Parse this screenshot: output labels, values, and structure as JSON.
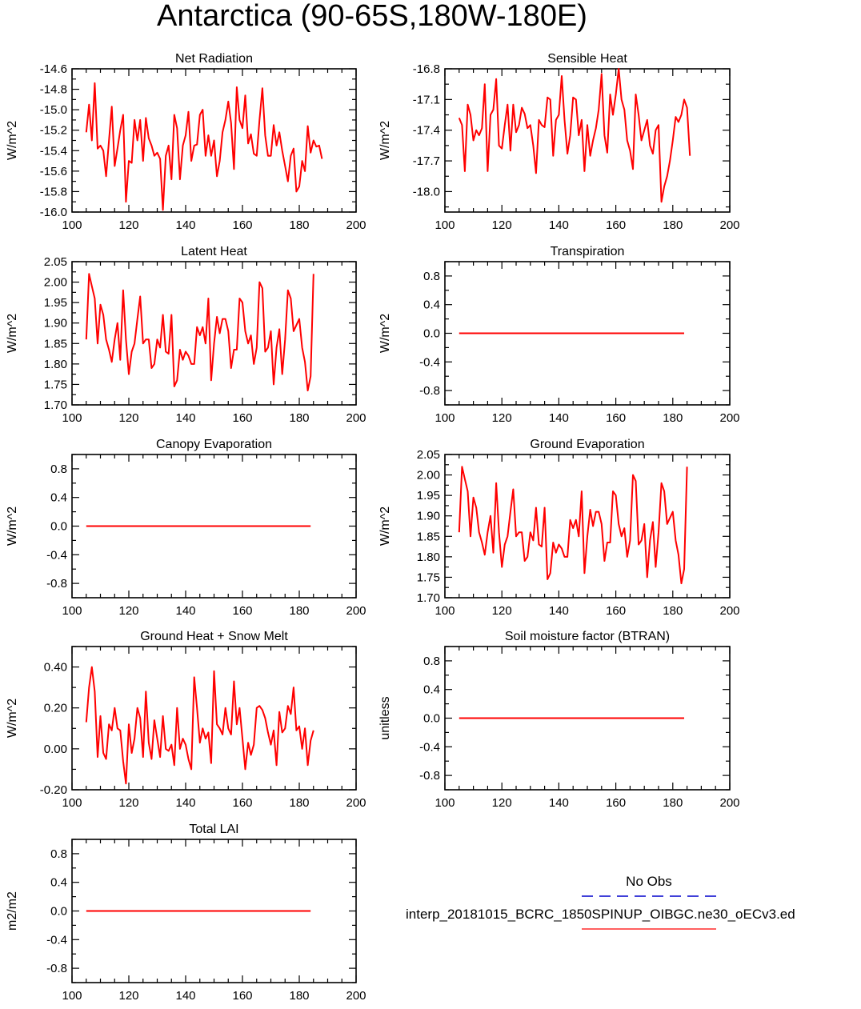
{
  "page": {
    "title": "Antarctica (90-65S,180W-180E)"
  },
  "legend": {
    "entries": [
      {
        "label": "No Obs",
        "color": "#0000cc",
        "dash": true
      },
      {
        "label": "interp_20181015_BCRC_1850SPINUP_OIBGC.ne30_oECv3.ed",
        "color": "#ff0000",
        "dash": false
      }
    ]
  },
  "chart_data": [
    {
      "id": "net-radiation",
      "type": "line",
      "title": "Net Radiation",
      "ylabel": "W/m^2",
      "xlim": [
        100,
        200
      ],
      "ylim": [
        -16.0,
        -14.6
      ],
      "xticks": [
        100,
        120,
        140,
        160,
        180,
        200
      ],
      "xtick_labels": [
        "100",
        "120",
        "140",
        "160",
        "180",
        "200"
      ],
      "yticks": [
        -16.0,
        -15.8,
        -15.6,
        -15.4,
        -15.2,
        -15.0,
        -14.8,
        -14.6
      ],
      "ytick_labels": [
        "-16.0",
        "-15.8",
        "-15.6",
        "-15.4",
        "-15.2",
        "-15.0",
        "-14.8",
        "-14.6"
      ],
      "x_start": 105,
      "x_step": 1,
      "series": [
        {
          "color": "#ff0000",
          "values": [
            -15.22,
            -14.95,
            -15.3,
            -14.74,
            -15.38,
            -15.35,
            -15.4,
            -15.65,
            -15.3,
            -14.97,
            -15.55,
            -15.38,
            -15.2,
            -15.05,
            -15.9,
            -15.5,
            -15.52,
            -15.1,
            -15.3,
            -15.1,
            -15.5,
            -15.08,
            -15.28,
            -15.35,
            -15.45,
            -15.42,
            -15.48,
            -15.98,
            -15.45,
            -15.35,
            -15.68,
            -15.05,
            -15.18,
            -15.68,
            -15.35,
            -15.25,
            -15.02,
            -15.5,
            -15.35,
            -15.34,
            -15.05,
            -15.0,
            -15.45,
            -15.25,
            -15.45,
            -15.3,
            -15.65,
            -15.5,
            -15.22,
            -15.1,
            -14.92,
            -15.13,
            -15.58,
            -14.78,
            -15.1,
            -15.18,
            -14.86,
            -15.33,
            -15.24,
            -15.43,
            -15.45,
            -15.1,
            -14.79,
            -15.25,
            -15.45,
            -15.45,
            -15.15,
            -15.35,
            -15.22,
            -15.4,
            -15.55,
            -15.7,
            -15.45,
            -15.38,
            -15.8,
            -15.75,
            -15.5,
            -15.6,
            -15.16,
            -15.42,
            -15.3,
            -15.36,
            -15.35,
            -15.48
          ]
        }
      ]
    },
    {
      "id": "sensible-heat",
      "type": "line",
      "title": "Sensible Heat",
      "ylabel": "W/m^2",
      "xlim": [
        100,
        200
      ],
      "ylim": [
        -18.2,
        -16.8
      ],
      "xticks": [
        100,
        120,
        140,
        160,
        180,
        200
      ],
      "xtick_labels": [
        "100",
        "120",
        "140",
        "160",
        "180",
        "200"
      ],
      "yticks": [
        -18.0,
        -17.7,
        -17.4,
        -17.1,
        -16.8
      ],
      "ytick_labels": [
        "-18.0",
        "-17.7",
        "-17.4",
        "-17.1",
        "-16.8"
      ],
      "x_start": 105,
      "x_step": 1,
      "series": [
        {
          "color": "#ff0000",
          "values": [
            -17.28,
            -17.35,
            -17.8,
            -17.15,
            -17.25,
            -17.5,
            -17.4,
            -17.45,
            -17.38,
            -16.95,
            -17.8,
            -17.25,
            -17.2,
            -16.9,
            -17.55,
            -17.58,
            -17.35,
            -17.15,
            -17.6,
            -17.15,
            -17.42,
            -17.35,
            -17.18,
            -17.24,
            -17.38,
            -17.35,
            -17.55,
            -17.82,
            -17.3,
            -17.35,
            -17.37,
            -17.08,
            -17.1,
            -17.65,
            -17.3,
            -17.25,
            -16.87,
            -17.3,
            -17.63,
            -17.45,
            -17.08,
            -17.1,
            -17.45,
            -17.3,
            -17.8,
            -17.35,
            -17.65,
            -17.5,
            -17.38,
            -17.2,
            -16.85,
            -17.45,
            -17.62,
            -17.05,
            -17.25,
            -17.05,
            -16.8,
            -17.1,
            -17.2,
            -17.5,
            -17.6,
            -17.78,
            -17.05,
            -17.25,
            -17.5,
            -17.4,
            -17.3,
            -17.55,
            -17.63,
            -17.4,
            -17.35,
            -18.1,
            -17.95,
            -17.85,
            -17.7,
            -17.5,
            -17.27,
            -17.32,
            -17.25,
            -17.1,
            -17.18,
            -17.65
          ]
        }
      ]
    },
    {
      "id": "latent-heat",
      "type": "line",
      "title": "Latent Heat",
      "ylabel": "W/m^2",
      "xlim": [
        100,
        200
      ],
      "ylim": [
        1.7,
        2.05
      ],
      "xticks": [
        100,
        120,
        140,
        160,
        180,
        200
      ],
      "xtick_labels": [
        "100",
        "120",
        "140",
        "160",
        "180",
        "200"
      ],
      "yticks": [
        1.7,
        1.75,
        1.8,
        1.85,
        1.9,
        1.95,
        2.0,
        2.05
      ],
      "ytick_labels": [
        "1.70",
        "1.75",
        "1.80",
        "1.85",
        "1.90",
        "1.95",
        "2.00",
        "2.05"
      ],
      "x_start": 105,
      "x_step": 1,
      "series": [
        {
          "color": "#ff0000",
          "values": [
            1.86,
            2.02,
            1.99,
            1.96,
            1.85,
            1.945,
            1.92,
            1.86,
            1.835,
            1.805,
            1.86,
            1.9,
            1.81,
            1.98,
            1.86,
            1.775,
            1.83,
            1.85,
            1.91,
            1.965,
            1.85,
            1.86,
            1.86,
            1.79,
            1.8,
            1.86,
            1.84,
            1.92,
            1.83,
            1.825,
            1.92,
            1.745,
            1.76,
            1.835,
            1.81,
            1.83,
            1.82,
            1.8,
            1.8,
            1.89,
            1.87,
            1.89,
            1.85,
            1.96,
            1.76,
            1.85,
            1.915,
            1.875,
            1.91,
            1.91,
            1.88,
            1.79,
            1.835,
            1.835,
            1.96,
            1.95,
            1.88,
            1.85,
            1.87,
            1.8,
            1.84,
            2.0,
            1.985,
            1.83,
            1.84,
            1.88,
            1.75,
            1.84,
            1.885,
            1.775,
            1.86,
            1.98,
            1.96,
            1.88,
            1.895,
            1.91,
            1.84,
            1.805,
            1.735,
            1.77,
            2.02
          ]
        }
      ]
    },
    {
      "id": "transpiration",
      "type": "line",
      "title": "Transpiration",
      "ylabel": "W/m^2",
      "xlim": [
        100,
        200
      ],
      "ylim": [
        -1.0,
        1.0
      ],
      "xticks": [
        100,
        120,
        140,
        160,
        180,
        200
      ],
      "xtick_labels": [
        "100",
        "120",
        "140",
        "160",
        "180",
        "200"
      ],
      "yticks": [
        -0.8,
        -0.4,
        0.0,
        0.4,
        0.8
      ],
      "ytick_labels": [
        "-0.8",
        "-0.4",
        "0.0",
        "0.4",
        "0.8"
      ],
      "x": [
        105,
        184
      ],
      "series": [
        {
          "color": "#ff0000",
          "values": [
            0,
            0
          ]
        }
      ]
    },
    {
      "id": "canopy-evaporation",
      "type": "line",
      "title": "Canopy Evaporation",
      "ylabel": "W/m^2",
      "xlim": [
        100,
        200
      ],
      "ylim": [
        -1.0,
        1.0
      ],
      "xticks": [
        100,
        120,
        140,
        160,
        180,
        200
      ],
      "xtick_labels": [
        "100",
        "120",
        "140",
        "160",
        "180",
        "200"
      ],
      "yticks": [
        -0.8,
        -0.4,
        0.0,
        0.4,
        0.8
      ],
      "ytick_labels": [
        "-0.8",
        "-0.4",
        "0.0",
        "0.4",
        "0.8"
      ],
      "x": [
        105,
        184
      ],
      "series": [
        {
          "color": "#ff0000",
          "values": [
            0,
            0
          ]
        }
      ]
    },
    {
      "id": "ground-evaporation",
      "type": "line",
      "title": "Ground Evaporation",
      "ylabel": "W/m^2",
      "xlim": [
        100,
        200
      ],
      "ylim": [
        1.7,
        2.05
      ],
      "xticks": [
        100,
        120,
        140,
        160,
        180,
        200
      ],
      "xtick_labels": [
        "100",
        "120",
        "140",
        "160",
        "180",
        "200"
      ],
      "yticks": [
        1.7,
        1.75,
        1.8,
        1.85,
        1.9,
        1.95,
        2.0,
        2.05
      ],
      "ytick_labels": [
        "1.70",
        "1.75",
        "1.80",
        "1.85",
        "1.90",
        "1.95",
        "2.00",
        "2.05"
      ],
      "x_start": 105,
      "x_step": 1,
      "series": [
        {
          "color": "#ff0000",
          "values": [
            1.86,
            2.02,
            1.99,
            1.96,
            1.85,
            1.945,
            1.92,
            1.86,
            1.835,
            1.805,
            1.86,
            1.9,
            1.81,
            1.98,
            1.86,
            1.775,
            1.83,
            1.85,
            1.91,
            1.965,
            1.85,
            1.86,
            1.86,
            1.79,
            1.8,
            1.86,
            1.84,
            1.92,
            1.83,
            1.825,
            1.92,
            1.745,
            1.76,
            1.835,
            1.81,
            1.83,
            1.82,
            1.8,
            1.8,
            1.89,
            1.87,
            1.89,
            1.85,
            1.96,
            1.76,
            1.85,
            1.915,
            1.875,
            1.91,
            1.91,
            1.88,
            1.79,
            1.835,
            1.835,
            1.96,
            1.95,
            1.88,
            1.85,
            1.87,
            1.8,
            1.84,
            2.0,
            1.985,
            1.83,
            1.84,
            1.88,
            1.75,
            1.84,
            1.885,
            1.775,
            1.86,
            1.98,
            1.96,
            1.88,
            1.895,
            1.91,
            1.84,
            1.805,
            1.735,
            1.77,
            2.02
          ]
        }
      ]
    },
    {
      "id": "ground-heat-snow-melt",
      "type": "line",
      "title": "Ground Heat + Snow Melt",
      "ylabel": "W/m^2",
      "xlim": [
        100,
        200
      ],
      "ylim": [
        -0.2,
        0.5
      ],
      "xticks": [
        100,
        120,
        140,
        160,
        180,
        200
      ],
      "xtick_labels": [
        "100",
        "120",
        "140",
        "160",
        "180",
        "200"
      ],
      "yticks": [
        -0.2,
        0.0,
        0.2,
        0.4
      ],
      "ytick_labels": [
        "-0.20",
        "0.00",
        "0.20",
        "0.40"
      ],
      "x_start": 105,
      "x_step": 1,
      "series": [
        {
          "color": "#ff0000",
          "values": [
            0.13,
            0.3,
            0.4,
            0.28,
            -0.04,
            0.16,
            -0.02,
            -0.05,
            0.12,
            0.09,
            0.2,
            0.1,
            0.09,
            -0.06,
            -0.17,
            0.12,
            -0.02,
            0.05,
            0.2,
            0.15,
            -0.04,
            0.28,
            0.03,
            -0.05,
            0.14,
            0.05,
            -0.04,
            0.16,
            0.0,
            -0.01,
            0.02,
            -0.08,
            0.2,
            0.0,
            0.05,
            0.02,
            -0.05,
            -0.1,
            0.35,
            0.2,
            0.03,
            0.1,
            0.05,
            0.08,
            -0.07,
            0.38,
            0.12,
            0.1,
            0.07,
            0.2,
            0.1,
            0.07,
            0.33,
            0.12,
            0.2,
            0.05,
            -0.1,
            0.03,
            -0.03,
            0.02,
            0.2,
            0.21,
            0.19,
            0.15,
            0.08,
            0.02,
            0.09,
            -0.08,
            0.18,
            0.08,
            0.1,
            0.21,
            0.17,
            0.3,
            0.09,
            0.11,
            0.0,
            0.1,
            -0.08,
            0.04,
            0.09
          ]
        }
      ]
    },
    {
      "id": "soil-moisture-factor",
      "type": "line",
      "title": "Soil moisture factor (BTRAN)",
      "ylabel": "unitless",
      "xlim": [
        100,
        200
      ],
      "ylim": [
        -1.0,
        1.0
      ],
      "xticks": [
        100,
        120,
        140,
        160,
        180,
        200
      ],
      "xtick_labels": [
        "100",
        "120",
        "140",
        "160",
        "180",
        "200"
      ],
      "yticks": [
        -0.8,
        -0.4,
        0.0,
        0.4,
        0.8
      ],
      "ytick_labels": [
        "-0.8",
        "-0.4",
        "0.0",
        "0.4",
        "0.8"
      ],
      "x": [
        105,
        184
      ],
      "series": [
        {
          "color": "#ff0000",
          "values": [
            0,
            0
          ]
        }
      ]
    },
    {
      "id": "total-lai",
      "type": "line",
      "title": "Total LAI",
      "ylabel": "m2/m2",
      "xlim": [
        100,
        200
      ],
      "ylim": [
        -1.0,
        1.0
      ],
      "xticks": [
        100,
        120,
        140,
        160,
        180,
        200
      ],
      "xtick_labels": [
        "100",
        "120",
        "140",
        "160",
        "180",
        "200"
      ],
      "yticks": [
        -0.8,
        -0.4,
        0.0,
        0.4,
        0.8
      ],
      "ytick_labels": [
        "-0.8",
        "-0.4",
        "0.0",
        "0.4",
        "0.8"
      ],
      "x": [
        105,
        184
      ],
      "series": [
        {
          "color": "#ff0000",
          "values": [
            0,
            0
          ]
        }
      ]
    }
  ]
}
